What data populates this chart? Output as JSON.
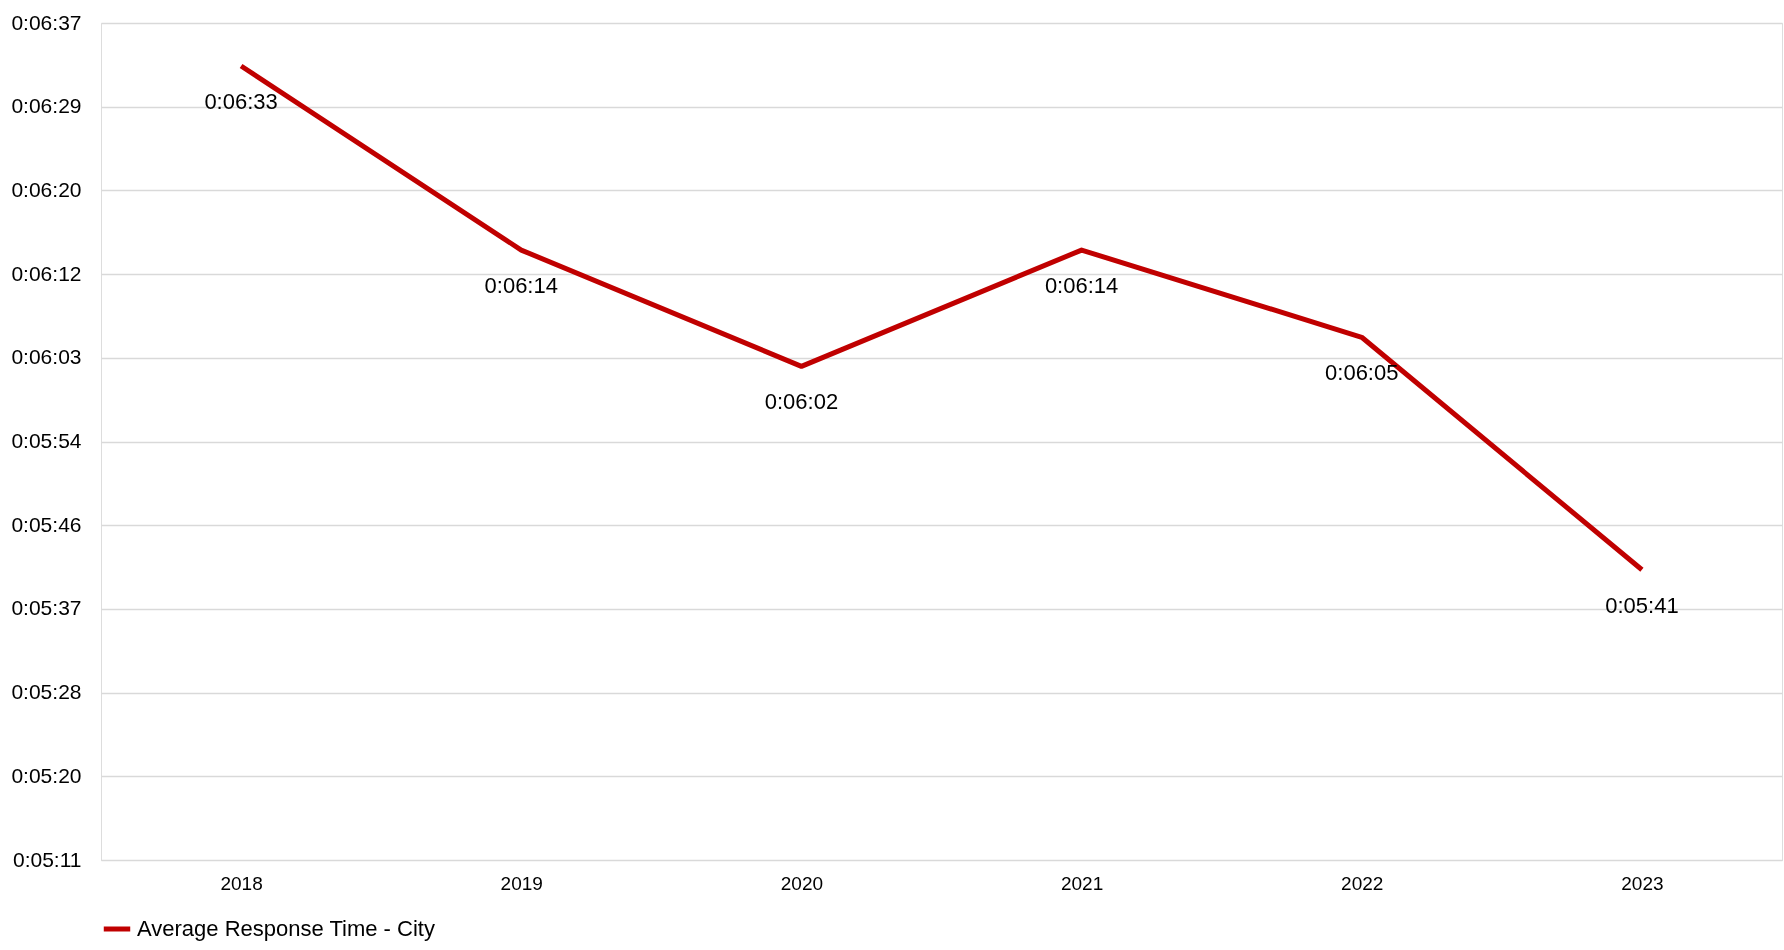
{
  "chart_data": {
    "type": "line",
    "categories": [
      "2018",
      "2019",
      "2020",
      "2021",
      "2022",
      "2023"
    ],
    "series": [
      {
        "name": "Average Response Time - City",
        "color": "#c00000",
        "values": [
          393,
          374,
          362,
          374,
          365,
          341
        ],
        "value_labels": [
          "0:06:33",
          "0:06:14",
          "0:06:02",
          "0:06:14",
          "0:06:05",
          "0:05:41"
        ]
      }
    ],
    "ylim": [
      311.04,
      397.44
    ],
    "yticks": [
      {
        "value": 311.04,
        "label": "0:05:11"
      },
      {
        "value": 319.68,
        "label": "0:05:20"
      },
      {
        "value": 328.32,
        "label": "0:05:28"
      },
      {
        "value": 336.96,
        "label": "0:05:37"
      },
      {
        "value": 345.6,
        "label": "0:05:46"
      },
      {
        "value": 354.24,
        "label": "0:05:54"
      },
      {
        "value": 362.88,
        "label": "0:06:03"
      },
      {
        "value": 371.52,
        "label": "0:06:12"
      },
      {
        "value": 380.16,
        "label": "0:06:20"
      },
      {
        "value": 388.8,
        "label": "0:06:29"
      },
      {
        "value": 397.44,
        "label": "0:06:37"
      }
    ],
    "grid": "y",
    "legend": "bottom",
    "marker": "none",
    "line_style": "solid"
  }
}
